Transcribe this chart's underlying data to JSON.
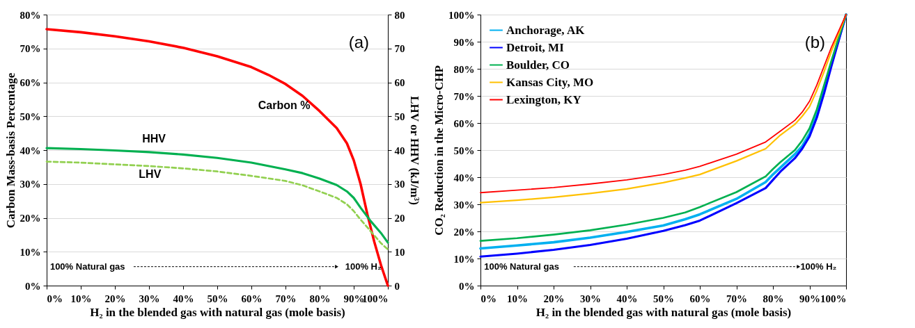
{
  "chart_data": [
    {
      "type": "line",
      "xlabel": "H₂ in the blended gas with natural gas (mole basis)",
      "ylabel": "Carbon Mass-basis Percentage",
      "y2label": "LHV or HHV (kJ/m³)",
      "xlim": [
        0,
        100
      ],
      "xticks": [
        {
          "value": 0,
          "label": "0%"
        },
        {
          "value": 10,
          "label": "10%"
        },
        {
          "value": 20,
          "label": "20%"
        },
        {
          "value": 30,
          "label": "30%"
        },
        {
          "value": 40,
          "label": "40%"
        },
        {
          "value": 50,
          "label": "50%"
        },
        {
          "value": 60,
          "label": "60%"
        },
        {
          "value": 70,
          "label": "70%"
        },
        {
          "value": 80,
          "label": "80%"
        },
        {
          "value": 90,
          "label": "90%"
        },
        {
          "value": 100,
          "label": "100%"
        }
      ],
      "ylim": [
        0,
        80
      ],
      "yticks": [
        {
          "value": 0,
          "label": "0%"
        },
        {
          "value": 10,
          "label": "10%"
        },
        {
          "value": 20,
          "label": "20%"
        },
        {
          "value": 30,
          "label": "30%"
        },
        {
          "value": 40,
          "label": "40%"
        },
        {
          "value": 50,
          "label": "50%"
        },
        {
          "value": 60,
          "label": "60%"
        },
        {
          "value": 70,
          "label": "70%"
        },
        {
          "value": 80,
          "label": "80%"
        }
      ],
      "y2lim": [
        0,
        80
      ],
      "y2ticks": [
        0,
        10,
        20,
        30,
        40,
        50,
        60,
        70,
        80
      ],
      "grid": "y",
      "legend": false,
      "annotations": [
        "(a)",
        "100% Natural gas",
        "100% H₂"
      ],
      "series": [
        {
          "name": "Carbon %",
          "color": "#ff0000",
          "x": [
            0,
            10,
            20,
            30,
            40,
            50,
            60,
            65,
            70,
            75,
            80,
            85,
            88,
            90,
            92,
            94,
            96,
            98,
            100
          ],
          "values": [
            75.7,
            74.8,
            73.6,
            72.1,
            70.2,
            67.7,
            64.5,
            62.2,
            59.5,
            56,
            51.5,
            46.5,
            42,
            37,
            30,
            21,
            13,
            6,
            0
          ]
        },
        {
          "name": "HHV",
          "color": "#00b050",
          "axis": "y2",
          "x": [
            0,
            10,
            20,
            30,
            40,
            50,
            60,
            70,
            75,
            80,
            85,
            88,
            90,
            92,
            95,
            98,
            100
          ],
          "values": [
            40.6,
            40.3,
            39.9,
            39.4,
            38.7,
            37.7,
            36.3,
            34.3,
            33.2,
            31.6,
            29.7,
            27.8,
            25.9,
            23,
            19,
            15.5,
            12.7
          ]
        },
        {
          "name": "LHV",
          "color": "#92d050",
          "axis": "y2",
          "line_style": "dashed",
          "x": [
            0,
            10,
            20,
            30,
            40,
            50,
            60,
            70,
            75,
            80,
            85,
            88,
            90,
            92,
            95,
            98,
            100
          ],
          "values": [
            36.6,
            36.3,
            35.8,
            35.3,
            34.6,
            33.7,
            32.4,
            30.9,
            29.6,
            27.8,
            25.9,
            24,
            22,
            19.5,
            16,
            12.5,
            10.7
          ]
        }
      ]
    },
    {
      "type": "line",
      "xlabel": "H₂ in the blended gas with natural gas (mole basis)",
      "ylabel": "CO₂ Reduction in the Micro-CHP",
      "xlim": [
        0,
        100
      ],
      "xticks": [
        {
          "value": 0,
          "label": "0%"
        },
        {
          "value": 10,
          "label": "10%"
        },
        {
          "value": 20,
          "label": "20%"
        },
        {
          "value": 30,
          "label": "30%"
        },
        {
          "value": 40,
          "label": "40%"
        },
        {
          "value": 50,
          "label": "50%"
        },
        {
          "value": 60,
          "label": "60%"
        },
        {
          "value": 70,
          "label": "70%"
        },
        {
          "value": 80,
          "label": "80%"
        },
        {
          "value": 90,
          "label": "90%"
        },
        {
          "value": 100,
          "label": "100%"
        }
      ],
      "ylim": [
        0,
        100
      ],
      "yticks": [
        {
          "value": 0,
          "label": "0%"
        },
        {
          "value": 10,
          "label": "10%"
        },
        {
          "value": 20,
          "label": "20%"
        },
        {
          "value": 30,
          "label": "30%"
        },
        {
          "value": 40,
          "label": "40%"
        },
        {
          "value": 50,
          "label": "50%"
        },
        {
          "value": 60,
          "label": "60%"
        },
        {
          "value": 70,
          "label": "70%"
        },
        {
          "value": 80,
          "label": "80%"
        },
        {
          "value": 90,
          "label": "90%"
        },
        {
          "value": 100,
          "label": "100%"
        }
      ],
      "grid": "y",
      "legend": "top left",
      "annotations": [
        "(b)",
        "100% Natural gas",
        "100% H₂"
      ],
      "x": [
        0,
        10,
        20,
        30,
        40,
        50,
        56,
        60,
        70,
        78,
        80,
        82,
        86,
        88,
        90,
        92,
        94,
        96,
        98,
        100
      ],
      "series": [
        {
          "name": "Anchorage, AK",
          "color": "#00b0f0",
          "values": [
            13.7,
            14.8,
            16,
            17.7,
            19.8,
            22.2,
            24.5,
            26.3,
            32,
            38.2,
            41,
            43.5,
            48.5,
            51.5,
            56,
            63,
            72,
            82,
            91,
            100
          ]
        },
        {
          "name": "Detroit, MI",
          "color": "#0000ff",
          "values": [
            10.7,
            11.8,
            13.2,
            15,
            17.3,
            20.2,
            22.3,
            24,
            30.4,
            36,
            39,
            42,
            47,
            50.5,
            55,
            62,
            71,
            81,
            90.5,
            100
          ]
        },
        {
          "name": "Boulder, CO",
          "color": "#00b050",
          "values": [
            16.5,
            17.5,
            18.8,
            20.4,
            22.5,
            25,
            27,
            29,
            34.5,
            40.3,
            43,
            45.5,
            50,
            53.5,
            58,
            65,
            74,
            83,
            91.5,
            100
          ]
        },
        {
          "name": "Kansas City, MO",
          "color": "#ffc000",
          "values": [
            30.6,
            31.5,
            32.6,
            34,
            35.7,
            38,
            39.7,
            41,
            46,
            50.5,
            53,
            55.5,
            59.5,
            62.5,
            66,
            72,
            79,
            86.5,
            93,
            100
          ]
        },
        {
          "name": "Lexington, KY",
          "color": "#ff0000",
          "values": [
            34.3,
            35.2,
            36.2,
            37.5,
            39,
            41,
            42.6,
            44,
            48.5,
            53,
            55,
            57,
            61,
            64,
            68,
            74,
            81,
            88,
            94,
            100
          ]
        }
      ]
    }
  ]
}
